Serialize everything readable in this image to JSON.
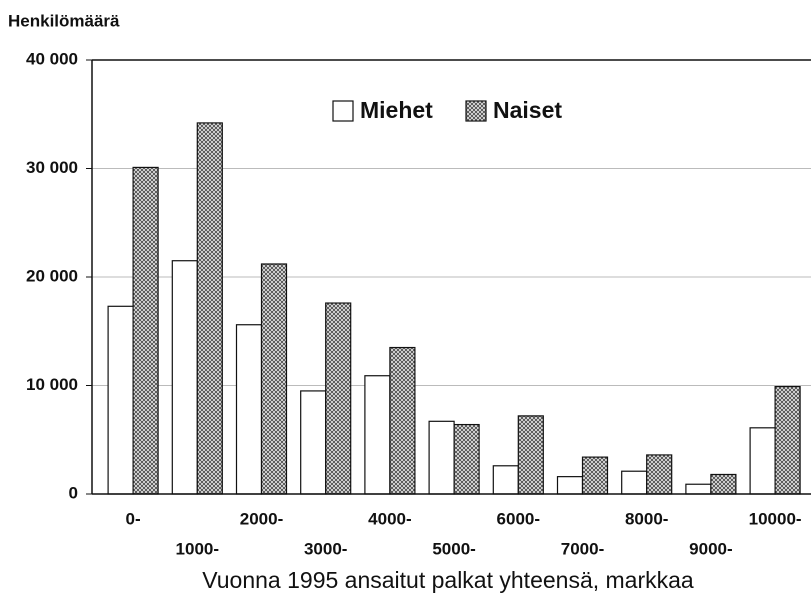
{
  "chart_data": {
    "type": "bar",
    "y_label": "Henkilömäärä",
    "x_label": "Vuonna 1995 ansaitut palkat yhteensä, markkaa",
    "categories": [
      "0-",
      "1000-",
      "2000-",
      "3000-",
      "4000-",
      "5000-",
      "6000-",
      "7000-",
      "8000-",
      "9000-",
      "10000-"
    ],
    "series": [
      {
        "name": "Miehet",
        "color": "#ffffff",
        "values": [
          17300,
          21500,
          15600,
          9500,
          10900,
          6700,
          2600,
          1600,
          2100,
          900,
          6100
        ]
      },
      {
        "name": "Naiset",
        "color": "#555555",
        "values": [
          30100,
          34200,
          21200,
          17600,
          13500,
          6400,
          7200,
          3400,
          3600,
          1800,
          9900
        ]
      }
    ],
    "ylim": [
      0,
      40000
    ],
    "yticks": [
      0,
      {
        "value": 10000,
        "label": "10 000"
      },
      {
        "value": 20000,
        "label": "20 000"
      },
      {
        "value": 30000,
        "label": "30 000"
      },
      {
        "value": 40000,
        "label": "40 000"
      }
    ],
    "grid": true
  }
}
